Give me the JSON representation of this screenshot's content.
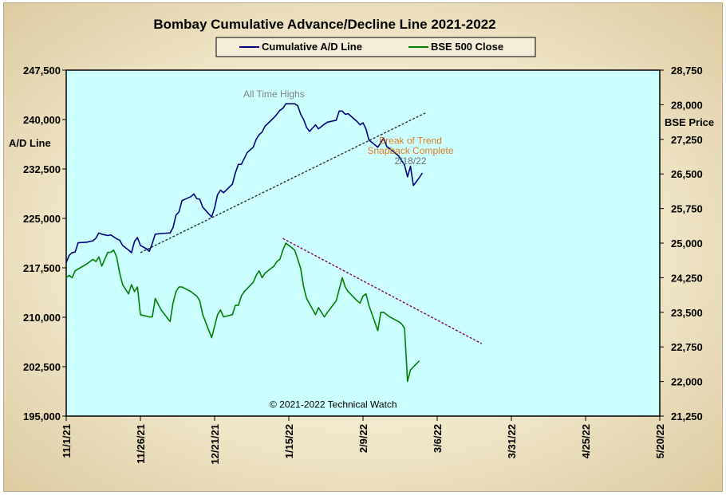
{
  "chart_data": {
    "type": "line",
    "title": "Bombay Cumulative Advance/Decline Line 2021-2022",
    "left_axis_label": "A/D Line",
    "right_axis_label": "BSE Price",
    "left_ylim": [
      195000,
      247500
    ],
    "right_ylim": [
      21250,
      28750
    ],
    "left_ticks": [
      "195,000",
      "202,500",
      "210,000",
      "217,500",
      "225,000",
      "232,500",
      "240,000",
      "247,500"
    ],
    "right_ticks": [
      "21,250",
      "22,000",
      "22,750",
      "23,500",
      "24,250",
      "25,000",
      "25,750",
      "26,500",
      "27,250",
      "28,000",
      "28,750"
    ],
    "x_ticks": [
      "11/1/21",
      "11/26/21",
      "12/21/21",
      "1/15/22",
      "2/9/22",
      "3/6/22",
      "3/31/22",
      "4/25/22",
      "5/20/22"
    ],
    "x_domain": [
      "2021-11-01",
      "2022-05-20"
    ],
    "grid": false,
    "legend_position": "top-center",
    "colors": {
      "plot_background": "#ccffff",
      "ad_line": "#000080",
      "bse_close": "#008000",
      "ad_trend": "#303030",
      "bse_trend": "#800060"
    },
    "series": [
      {
        "name": "Cumulative A/D Line",
        "axis": "left",
        "points": [
          [
            "2021-11-01",
            218300
          ],
          [
            "2021-11-02",
            219400
          ],
          [
            "2021-11-03",
            219800
          ],
          [
            "2021-11-04",
            219900
          ],
          [
            "2021-11-05",
            221300
          ],
          [
            "2021-11-08",
            221400
          ],
          [
            "2021-11-09",
            221500
          ],
          [
            "2021-11-10",
            221600
          ],
          [
            "2021-11-11",
            222000
          ],
          [
            "2021-11-12",
            222800
          ],
          [
            "2021-11-13",
            222600
          ],
          [
            "2021-11-15",
            222400
          ],
          [
            "2021-11-16",
            222500
          ],
          [
            "2021-11-17",
            222200
          ],
          [
            "2021-11-18",
            221900
          ],
          [
            "2021-11-19",
            221700
          ],
          [
            "2021-11-20",
            220900
          ],
          [
            "2021-11-22",
            220200
          ],
          [
            "2021-11-23",
            219800
          ],
          [
            "2021-11-24",
            221500
          ],
          [
            "2021-11-25",
            222100
          ],
          [
            "2021-11-26",
            220900
          ],
          [
            "2021-11-28",
            220400
          ],
          [
            "2021-11-29",
            220000
          ],
          [
            "2021-11-30",
            221200
          ],
          [
            "2021-12-01",
            222600
          ],
          [
            "2021-12-03",
            222700
          ],
          [
            "2021-12-06",
            222800
          ],
          [
            "2021-12-07",
            223600
          ],
          [
            "2021-12-08",
            225500
          ],
          [
            "2021-12-09",
            226000
          ],
          [
            "2021-12-10",
            227700
          ],
          [
            "2021-12-13",
            228300
          ],
          [
            "2021-12-14",
            228700
          ],
          [
            "2021-12-15",
            228000
          ],
          [
            "2021-12-16",
            227900
          ],
          [
            "2021-12-17",
            226700
          ],
          [
            "2021-12-19",
            225700
          ],
          [
            "2021-12-20",
            225200
          ],
          [
            "2021-12-21",
            226600
          ],
          [
            "2021-12-22",
            228600
          ],
          [
            "2021-12-23",
            229300
          ],
          [
            "2021-12-24",
            228900
          ],
          [
            "2021-12-27",
            230200
          ],
          [
            "2021-12-28",
            231900
          ],
          [
            "2021-12-29",
            233200
          ],
          [
            "2021-12-30",
            233200
          ],
          [
            "2022-01-01",
            235000
          ],
          [
            "2022-01-03",
            235800
          ],
          [
            "2022-01-04",
            237000
          ],
          [
            "2022-01-05",
            237700
          ],
          [
            "2022-01-06",
            238100
          ],
          [
            "2022-01-07",
            239000
          ],
          [
            "2022-01-10",
            240300
          ],
          [
            "2022-01-11",
            240800
          ],
          [
            "2022-01-12",
            241400
          ],
          [
            "2022-01-13",
            241700
          ],
          [
            "2022-01-14",
            242400
          ],
          [
            "2022-01-17",
            242400
          ],
          [
            "2022-01-18",
            242100
          ],
          [
            "2022-01-19",
            240800
          ],
          [
            "2022-01-20",
            240000
          ],
          [
            "2022-01-21",
            238800
          ],
          [
            "2022-01-22",
            238200
          ],
          [
            "2022-01-24",
            239200
          ],
          [
            "2022-01-25",
            238600
          ],
          [
            "2022-01-27",
            239300
          ],
          [
            "2022-01-28",
            239600
          ],
          [
            "2022-01-31",
            239900
          ],
          [
            "2022-02-01",
            241300
          ],
          [
            "2022-02-02",
            241300
          ],
          [
            "2022-02-03",
            240800
          ],
          [
            "2022-02-04",
            240900
          ],
          [
            "2022-02-07",
            239700
          ],
          [
            "2022-02-08",
            239200
          ],
          [
            "2022-02-09",
            239500
          ],
          [
            "2022-02-10",
            238600
          ],
          [
            "2022-02-11",
            236900
          ],
          [
            "2022-02-14",
            235800
          ],
          [
            "2022-02-15",
            236500
          ],
          [
            "2022-02-16",
            237200
          ],
          [
            "2022-02-17",
            235900
          ],
          [
            "2022-02-18",
            235600
          ],
          [
            "2022-02-21",
            234500
          ],
          [
            "2022-02-22",
            233800
          ],
          [
            "2022-02-23",
            233100
          ],
          [
            "2022-02-24",
            231300
          ],
          [
            "2022-02-25",
            232900
          ],
          [
            "2022-02-26",
            230000
          ],
          [
            "2022-02-28",
            231200
          ],
          [
            "2022-03-01",
            231900
          ]
        ]
      },
      {
        "name": "BSE 500 Close",
        "axis": "right",
        "points": [
          [
            "2021-11-01",
            24250
          ],
          [
            "2021-11-02",
            24300
          ],
          [
            "2021-11-03",
            24250
          ],
          [
            "2021-11-04",
            24400
          ],
          [
            "2021-11-08",
            24550
          ],
          [
            "2021-11-10",
            24650
          ],
          [
            "2021-11-11",
            24600
          ],
          [
            "2021-11-12",
            24700
          ],
          [
            "2021-11-13",
            24500
          ],
          [
            "2021-11-15",
            24800
          ],
          [
            "2021-11-16",
            24800
          ],
          [
            "2021-11-17",
            24850
          ],
          [
            "2021-11-18",
            24700
          ],
          [
            "2021-11-19",
            24350
          ],
          [
            "2021-11-20",
            24100
          ],
          [
            "2021-11-22",
            23900
          ],
          [
            "2021-11-23",
            24100
          ],
          [
            "2021-11-24",
            23950
          ],
          [
            "2021-11-25",
            24050
          ],
          [
            "2021-11-26",
            23450
          ],
          [
            "2021-11-29",
            23400
          ],
          [
            "2021-11-30",
            23400
          ],
          [
            "2021-12-01",
            23800
          ],
          [
            "2021-12-03",
            23550
          ],
          [
            "2021-12-06",
            23300
          ],
          [
            "2021-12-07",
            23700
          ],
          [
            "2021-12-08",
            23950
          ],
          [
            "2021-12-09",
            24050
          ],
          [
            "2021-12-10",
            24050
          ],
          [
            "2021-12-13",
            23950
          ],
          [
            "2021-12-14",
            23900
          ],
          [
            "2021-12-15",
            23850
          ],
          [
            "2021-12-16",
            23750
          ],
          [
            "2021-12-17",
            23450
          ],
          [
            "2021-12-20",
            22950
          ],
          [
            "2021-12-21",
            23200
          ],
          [
            "2021-12-22",
            23450
          ],
          [
            "2021-12-23",
            23550
          ],
          [
            "2021-12-24",
            23400
          ],
          [
            "2021-12-27",
            23450
          ],
          [
            "2021-12-28",
            23650
          ],
          [
            "2021-12-29",
            23650
          ],
          [
            "2021-12-30",
            23850
          ],
          [
            "2021-12-31",
            23950
          ],
          [
            "2022-01-03",
            24150
          ],
          [
            "2022-01-04",
            24300
          ],
          [
            "2022-01-05",
            24400
          ],
          [
            "2022-01-06",
            24250
          ],
          [
            "2022-01-07",
            24350
          ],
          [
            "2022-01-10",
            24500
          ],
          [
            "2022-01-11",
            24600
          ],
          [
            "2022-01-12",
            24650
          ],
          [
            "2022-01-13",
            24850
          ],
          [
            "2022-01-14",
            25000
          ],
          [
            "2022-01-15",
            24950
          ],
          [
            "2022-01-17",
            24850
          ],
          [
            "2022-01-18",
            24650
          ],
          [
            "2022-01-19",
            24450
          ],
          [
            "2022-01-20",
            24050
          ],
          [
            "2022-01-21",
            23800
          ],
          [
            "2022-01-24",
            23450
          ],
          [
            "2022-01-25",
            23600
          ],
          [
            "2022-01-27",
            23400
          ],
          [
            "2022-01-28",
            23500
          ],
          [
            "2022-01-31",
            23750
          ],
          [
            "2022-02-01",
            24000
          ],
          [
            "2022-02-02",
            24250
          ],
          [
            "2022-02-03",
            24050
          ],
          [
            "2022-02-04",
            23950
          ],
          [
            "2022-02-07",
            23750
          ],
          [
            "2022-02-08",
            23700
          ],
          [
            "2022-02-09",
            23850
          ],
          [
            "2022-02-10",
            23900
          ],
          [
            "2022-02-11",
            23650
          ],
          [
            "2022-02-14",
            23100
          ],
          [
            "2022-02-15",
            23500
          ],
          [
            "2022-02-16",
            23500
          ],
          [
            "2022-02-17",
            23450
          ],
          [
            "2022-02-18",
            23400
          ],
          [
            "2022-02-21",
            23300
          ],
          [
            "2022-02-22",
            23250
          ],
          [
            "2022-02-23",
            23150
          ],
          [
            "2022-02-24",
            22000
          ],
          [
            "2022-02-25",
            22250
          ],
          [
            "2022-02-28",
            22450
          ]
        ]
      }
    ],
    "trendlines": [
      {
        "axis": "left",
        "from": [
          "2021-11-26",
          219800
        ],
        "to": [
          "2022-03-02",
          241000
        ],
        "style": "dashed"
      },
      {
        "axis": "right",
        "from": [
          "2022-01-13",
          25100
        ],
        "to": [
          "2022-03-21",
          22820
        ],
        "style": "dashed"
      }
    ],
    "annotations": {
      "all_time_highs": {
        "text": "All Time Highs",
        "at": [
          "2022-01-10",
          243400
        ]
      },
      "break_line1": {
        "text": "Break of Trend",
        "at": [
          "2022-02-25",
          236300
        ]
      },
      "break_line2": {
        "text": "Snapback Complete",
        "at": [
          "2022-02-25",
          234800
        ]
      },
      "break_date": {
        "text": "2/18/22",
        "at": [
          "2022-02-25",
          233200
        ]
      },
      "copyright": {
        "text": "© 2021-2022  Technical Watch",
        "at": [
          "2022-01-30",
          196300
        ]
      }
    }
  }
}
